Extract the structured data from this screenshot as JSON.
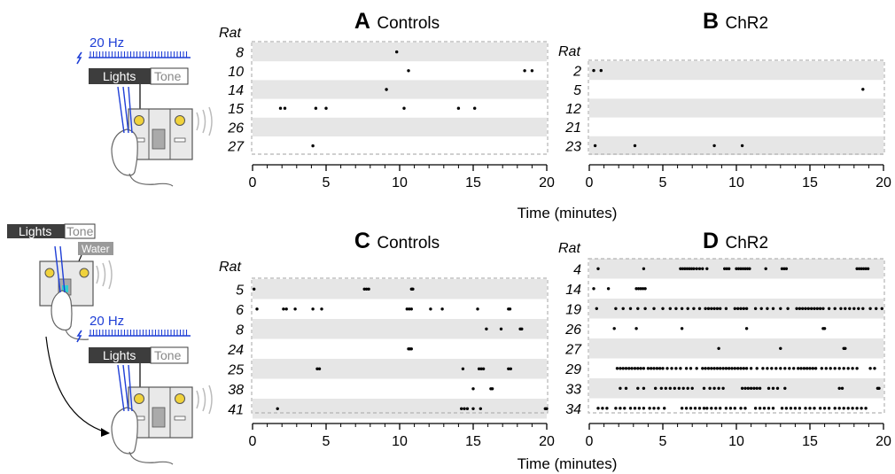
{
  "illustration": {
    "top": {
      "hz": "20 Hz",
      "lights": "Lights",
      "tone": "Tone"
    },
    "bottom": {
      "lights": "Lights",
      "tone": "Tone",
      "water": "Water",
      "hz": "20 Hz"
    }
  },
  "colors": {
    "band": "#e6e6e6",
    "frame": "#b4b4b4",
    "laser": "#1f3fd6",
    "light": "#f0d23c",
    "water": "#2fd0d0"
  },
  "rows": [
    {
      "xlabel": "Time (minutes)",
      "panels": [
        {
          "letter": "A",
          "title": "Controls",
          "header": "Rat"
        },
        {
          "letter": "B",
          "title": "ChR2",
          "header": "Rat"
        }
      ]
    },
    {
      "xlabel": "Time (minutes)",
      "panels": [
        {
          "letter": "C",
          "title": "Controls",
          "header": "Rat"
        },
        {
          "letter": "D",
          "title": "ChR2",
          "header": "Rat"
        }
      ]
    }
  ],
  "chart_data": [
    {
      "type": "scatter",
      "panel": "A",
      "title": "Controls",
      "xlabel": "Time (minutes)",
      "ylabel": "Rat",
      "xlim": [
        0,
        20
      ],
      "xticks": [
        0,
        5,
        10,
        15,
        20
      ],
      "series": [
        {
          "name": "8",
          "values": [
            9.8
          ]
        },
        {
          "name": "10",
          "values": [
            10.6,
            18.5,
            19.0
          ]
        },
        {
          "name": "14",
          "values": [
            9.1
          ]
        },
        {
          "name": "15",
          "values": [
            1.9,
            2.2,
            4.3,
            5.0,
            10.3,
            14.0,
            15.1
          ]
        },
        {
          "name": "26",
          "values": []
        },
        {
          "name": "27",
          "values": [
            4.1
          ]
        }
      ]
    },
    {
      "type": "scatter",
      "panel": "B",
      "title": "ChR2",
      "xlabel": "Time (minutes)",
      "ylabel": "Rat",
      "xlim": [
        0,
        20
      ],
      "xticks": [
        0,
        5,
        10,
        15,
        20
      ],
      "series": [
        {
          "name": "2",
          "values": [
            0.3,
            0.8
          ]
        },
        {
          "name": "5",
          "values": [
            18.6
          ]
        },
        {
          "name": "12",
          "values": []
        },
        {
          "name": "21",
          "values": []
        },
        {
          "name": "23",
          "values": [
            0.4,
            3.1,
            8.5,
            10.4
          ]
        }
      ]
    },
    {
      "type": "scatter",
      "panel": "C",
      "title": "Controls",
      "xlabel": "Time (minutes)",
      "ylabel": "Rat",
      "xlim": [
        0,
        20
      ],
      "xticks": [
        0,
        5,
        10,
        15,
        20
      ],
      "series": [
        {
          "name": "5",
          "values": [
            0.1,
            7.6,
            7.75,
            7.9,
            10.8,
            10.85,
            10.9
          ]
        },
        {
          "name": "6",
          "values": [
            0.3,
            2.1,
            2.3,
            2.9,
            4.1,
            4.7,
            10.5,
            10.65,
            10.8,
            12.1,
            12.9,
            15.3,
            17.4,
            17.5
          ]
        },
        {
          "name": "8",
          "values": [
            15.9,
            16.9,
            18.2,
            18.3
          ]
        },
        {
          "name": "24",
          "values": [
            10.6,
            10.7,
            10.8
          ]
        },
        {
          "name": "25",
          "values": [
            4.4,
            4.55,
            14.3,
            15.4,
            15.55,
            15.7,
            17.4,
            17.55
          ]
        },
        {
          "name": "38",
          "values": [
            15.0,
            16.2,
            16.3
          ]
        },
        {
          "name": "41",
          "values": [
            1.7,
            14.2,
            14.4,
            14.6,
            15.0,
            15.5,
            19.9,
            20.0
          ]
        }
      ]
    },
    {
      "type": "scatter",
      "panel": "D",
      "title": "ChR2",
      "xlabel": "Time (minutes)",
      "ylabel": "Rat",
      "xlim": [
        0,
        20
      ],
      "xticks": [
        0,
        5,
        10,
        15,
        20
      ],
      "series": [
        {
          "name": "4",
          "values": [
            0.6,
            3.7,
            6.2,
            6.35,
            6.5,
            6.65,
            6.8,
            6.95,
            7.1,
            7.3,
            7.5,
            7.7,
            8.0,
            9.2,
            9.35,
            9.5,
            10.0,
            10.15,
            10.3,
            10.45,
            10.6,
            10.75,
            10.9,
            12.0,
            13.1,
            13.25,
            13.4,
            18.2,
            18.35,
            18.5,
            18.65,
            18.8,
            18.95
          ]
        },
        {
          "name": "14",
          "values": [
            0.3,
            1.3,
            3.2,
            3.35,
            3.5,
            3.65,
            3.8
          ]
        },
        {
          "name": "19",
          "values": [
            0.5,
            1.8,
            2.3,
            2.8,
            3.3,
            3.8,
            4.4,
            5.0,
            5.5,
            5.9,
            6.3,
            6.7,
            7.1,
            7.5,
            7.9,
            8.1,
            8.3,
            8.5,
            8.7,
            8.9,
            9.3,
            9.9,
            10.1,
            10.3,
            10.5,
            10.7,
            11.3,
            11.7,
            12.1,
            12.5,
            13.0,
            13.5,
            14.1,
            14.3,
            14.5,
            14.7,
            14.9,
            15.1,
            15.3,
            15.5,
            15.7,
            15.9,
            16.3,
            16.7,
            17.1,
            17.4,
            17.7,
            18.0,
            18.3,
            18.6,
            19.1,
            19.5,
            19.9
          ]
        },
        {
          "name": "26",
          "values": [
            1.7,
            3.2,
            6.3,
            10.7,
            15.9,
            16.0
          ]
        },
        {
          "name": "27",
          "values": [
            8.8,
            13.0,
            17.3,
            17.4
          ]
        },
        {
          "name": "29",
          "values": [
            1.9,
            2.1,
            2.3,
            2.5,
            2.7,
            2.9,
            3.1,
            3.3,
            3.5,
            3.7,
            4.0,
            4.2,
            4.4,
            4.6,
            4.8,
            5.0,
            5.3,
            5.6,
            5.9,
            6.2,
            6.6,
            6.9,
            7.3,
            7.7,
            7.9,
            8.1,
            8.3,
            8.5,
            8.7,
            8.9,
            9.1,
            9.3,
            9.5,
            9.7,
            9.9,
            10.1,
            10.3,
            10.5,
            10.7,
            11.0,
            11.4,
            11.8,
            12.1,
            12.4,
            12.7,
            13.0,
            13.3,
            13.6,
            13.9,
            14.2,
            14.4,
            14.6,
            14.8,
            15.0,
            15.2,
            15.4,
            15.8,
            16.1,
            16.4,
            16.7,
            17.0,
            17.3,
            17.6,
            17.9,
            18.2,
            19.1,
            19.4
          ]
        },
        {
          "name": "33",
          "values": [
            2.1,
            2.5,
            3.3,
            3.7,
            4.5,
            4.9,
            5.2,
            5.5,
            5.8,
            6.1,
            6.4,
            6.7,
            7.0,
            7.8,
            8.2,
            8.5,
            8.8,
            9.1,
            10.4,
            10.6,
            10.8,
            11.0,
            11.2,
            11.4,
            11.6,
            12.2,
            12.5,
            12.8,
            13.3,
            17.0,
            17.2,
            19.6,
            19.7
          ]
        },
        {
          "name": "34",
          "values": [
            0.6,
            0.9,
            1.2,
            1.8,
            2.1,
            2.4,
            2.8,
            3.1,
            3.4,
            3.7,
            4.1,
            4.4,
            4.7,
            5.1,
            6.3,
            6.6,
            6.9,
            7.2,
            7.5,
            7.8,
            8.0,
            8.3,
            8.6,
            8.9,
            9.3,
            9.6,
            9.9,
            10.3,
            10.6,
            11.3,
            11.6,
            11.9,
            12.2,
            12.5,
            13.1,
            13.4,
            13.7,
            14.0,
            14.3,
            14.7,
            15.0,
            15.3,
            15.7,
            16.0,
            16.3,
            16.7,
            17.0,
            17.3,
            17.6,
            17.9,
            18.2,
            18.5,
            18.8
          ]
        }
      ]
    }
  ]
}
